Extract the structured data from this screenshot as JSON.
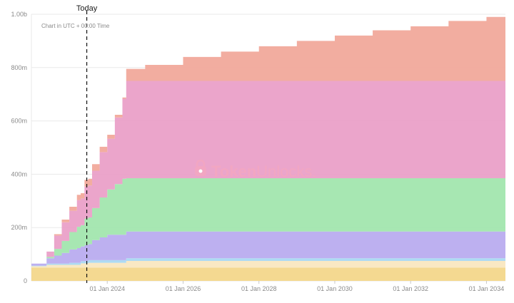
{
  "chart_data": {
    "type": "area",
    "stacked": true,
    "step": true,
    "note": "Chart in UTC + 00:00 Time",
    "marker": {
      "label": "Today",
      "x": 2023.46
    },
    "watermark": {
      "primary": "Token",
      "secondary": "Unlocks."
    },
    "ylim": [
      0,
      1000
    ],
    "xlim": [
      2022.0,
      2034.5
    ],
    "y_ticks": [
      {
        "v": 0,
        "label": "0"
      },
      {
        "v": 200,
        "label": "200m"
      },
      {
        "v": 400,
        "label": "400m"
      },
      {
        "v": 600,
        "label": "600m"
      },
      {
        "v": 800,
        "label": "800m"
      },
      {
        "v": 1000,
        "label": "1.00b"
      }
    ],
    "x_ticks": [
      {
        "v": 2024.0,
        "label": "01 Jan 2024"
      },
      {
        "v": 2026.0,
        "label": "01 Jan 2026"
      },
      {
        "v": 2028.0,
        "label": "01 Jan 2028"
      },
      {
        "v": 2030.0,
        "label": "01 Jan 2030"
      },
      {
        "v": 2032.0,
        "label": "01 Jan 2032"
      },
      {
        "v": 2034.0,
        "label": "01 Jan 2034"
      }
    ],
    "colors": [
      "#f3d78b",
      "#f9e7c0",
      "#a9d8f2",
      "#b9acef",
      "#a2e6ae",
      "#eaa0c8",
      "#f1a99b"
    ],
    "series": [
      {
        "values": [
          [
            2022.0,
            50
          ],
          [
            2024.5,
            50
          ],
          [
            2034.5,
            50
          ]
        ]
      },
      {
        "values": [
          [
            2022.0,
            5
          ],
          [
            2022.4,
            10
          ],
          [
            2023.3,
            16
          ],
          [
            2023.5,
            18
          ],
          [
            2024.5,
            25
          ],
          [
            2034.5,
            25
          ]
        ]
      },
      {
        "values": [
          [
            2022.0,
            2
          ],
          [
            2022.4,
            5
          ],
          [
            2023.0,
            8
          ],
          [
            2023.5,
            10
          ],
          [
            2024.5,
            10
          ],
          [
            2034.5,
            10
          ]
        ]
      },
      {
        "values": [
          [
            2022.0,
            8
          ],
          [
            2022.3,
            8
          ],
          [
            2022.4,
            20
          ],
          [
            2022.6,
            30
          ],
          [
            2022.8,
            40
          ],
          [
            2023.0,
            50
          ],
          [
            2023.2,
            55
          ],
          [
            2023.4,
            60
          ],
          [
            2023.6,
            75
          ],
          [
            2023.8,
            85
          ],
          [
            2024.0,
            95
          ],
          [
            2024.5,
            100
          ],
          [
            2034.5,
            100
          ]
        ]
      },
      {
        "values": [
          [
            2022.0,
            0
          ],
          [
            2022.4,
            5
          ],
          [
            2022.6,
            25
          ],
          [
            2022.8,
            45
          ],
          [
            2023.0,
            65
          ],
          [
            2023.2,
            80
          ],
          [
            2023.4,
            100
          ],
          [
            2023.6,
            120
          ],
          [
            2023.8,
            150
          ],
          [
            2024.0,
            170
          ],
          [
            2024.2,
            190
          ],
          [
            2024.4,
            210
          ],
          [
            2024.5,
            200
          ],
          [
            2034.5,
            200
          ]
        ]
      },
      {
        "values": [
          [
            2022.0,
            0
          ],
          [
            2022.4,
            20
          ],
          [
            2022.6,
            50
          ],
          [
            2022.8,
            70
          ],
          [
            2023.0,
            80
          ],
          [
            2023.2,
            100
          ],
          [
            2023.4,
            120
          ],
          [
            2023.6,
            140
          ],
          [
            2023.8,
            170
          ],
          [
            2024.0,
            190
          ],
          [
            2024.2,
            250
          ],
          [
            2024.4,
            300
          ],
          [
            2024.5,
            365
          ],
          [
            2034.5,
            365
          ]
        ]
      },
      {
        "values": [
          [
            2022.0,
            0
          ],
          [
            2022.4,
            0
          ],
          [
            2022.6,
            5
          ],
          [
            2022.8,
            10
          ],
          [
            2023.0,
            15
          ],
          [
            2023.2,
            20
          ],
          [
            2023.4,
            25
          ],
          [
            2023.6,
            25
          ],
          [
            2023.8,
            20
          ],
          [
            2024.0,
            15
          ],
          [
            2024.2,
            10
          ],
          [
            2024.4,
            5
          ],
          [
            2024.5,
            45
          ],
          [
            2025.0,
            60
          ],
          [
            2026.0,
            90
          ],
          [
            2027.0,
            110
          ],
          [
            2028.0,
            130
          ],
          [
            2029.0,
            150
          ],
          [
            2030.0,
            170
          ],
          [
            2031.0,
            190
          ],
          [
            2032.0,
            205
          ],
          [
            2033.0,
            225
          ],
          [
            2034.0,
            240
          ],
          [
            2034.5,
            245
          ]
        ]
      }
    ]
  }
}
